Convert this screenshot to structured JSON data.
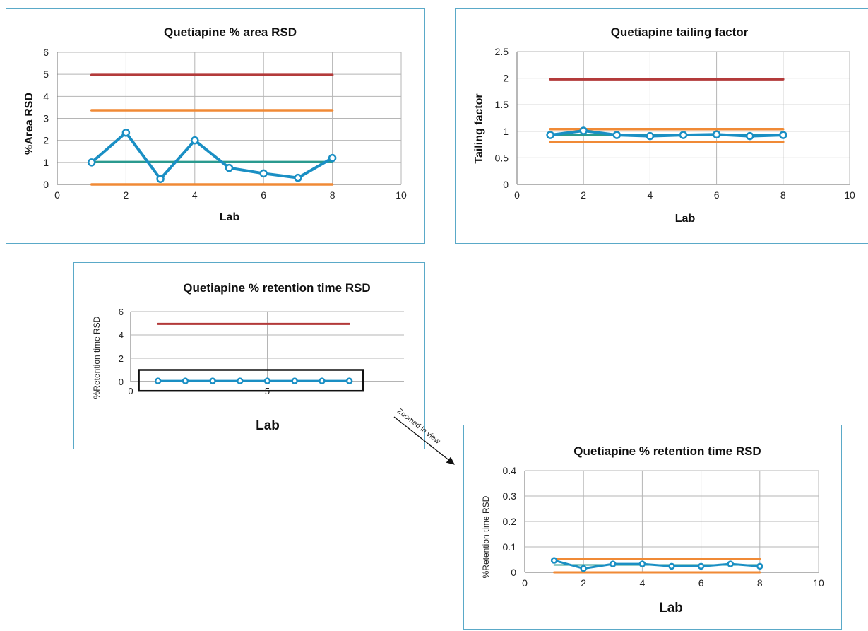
{
  "colors": {
    "panel_border": "#5aa9c8",
    "series": "#1a8fc4",
    "upper_limit": "#b33a3a",
    "orange_limit": "#f08a36",
    "mean_line": "#2a9a8f",
    "grid": "#b5b5b5",
    "axis": "#888888"
  },
  "annotation": {
    "text": "Zoomed in view"
  },
  "chart_data": [
    {
      "id": "area",
      "type": "line",
      "title": "Quetiapine % area RSD",
      "xlabel": "Lab",
      "ylabel": "%Area RSD",
      "xlim": [
        0,
        10
      ],
      "ylim": [
        0,
        6
      ],
      "x_ticks": [
        0,
        2,
        4,
        6,
        8,
        10
      ],
      "y_ticks": [
        0,
        1,
        2,
        3,
        4,
        5,
        6
      ],
      "x_tick_labels": [
        "0",
        "2",
        "4",
        "6",
        "8",
        "10"
      ],
      "y_tick_labels": [
        "0",
        "1",
        "2",
        "3",
        "4",
        "5",
        "6"
      ],
      "grid": true,
      "series": [
        {
          "x": [
            1,
            2,
            3,
            4,
            5,
            6,
            7,
            8
          ],
          "values": [
            1.0,
            2.35,
            0.25,
            2.0,
            0.75,
            0.5,
            0.3,
            1.2
          ]
        }
      ],
      "reference_lines": [
        {
          "kind": "upper",
          "y": 4.97,
          "x_range": [
            1,
            8
          ]
        },
        {
          "kind": "orange",
          "y": 3.37,
          "x_range": [
            1,
            8
          ]
        },
        {
          "kind": "mean",
          "y": 1.03,
          "x_range": [
            1,
            8
          ]
        },
        {
          "kind": "orange",
          "y": 0.0,
          "x_range": [
            1,
            8
          ]
        }
      ]
    },
    {
      "id": "tailing",
      "type": "line",
      "title": "Quetiapine tailing factor",
      "xlabel": "Lab",
      "ylabel": "Tailing factor",
      "xlim": [
        0,
        10
      ],
      "ylim": [
        0,
        2.5
      ],
      "x_ticks": [
        0,
        2,
        4,
        6,
        8,
        10
      ],
      "y_ticks": [
        0,
        0.5,
        1,
        1.5,
        2,
        2.5
      ],
      "x_tick_labels": [
        "0",
        "2",
        "4",
        "6",
        "8",
        "10"
      ],
      "y_tick_labels": [
        "0",
        "0.5",
        "1",
        "1.5",
        "2",
        "2.5"
      ],
      "grid": true,
      "series": [
        {
          "x": [
            1,
            2,
            3,
            4,
            5,
            6,
            7,
            8
          ],
          "values": [
            0.93,
            1.01,
            0.93,
            0.91,
            0.93,
            0.94,
            0.91,
            0.93
          ]
        }
      ],
      "reference_lines": [
        {
          "kind": "upper",
          "y": 1.98,
          "x_range": [
            1,
            8
          ]
        },
        {
          "kind": "orange",
          "y": 1.04,
          "x_range": [
            1,
            8
          ]
        },
        {
          "kind": "mean",
          "y": 0.93,
          "x_range": [
            1,
            8
          ]
        },
        {
          "kind": "orange",
          "y": 0.8,
          "x_range": [
            1,
            8
          ]
        }
      ]
    },
    {
      "id": "rt",
      "type": "line",
      "title": "Quetiapine % retention time RSD",
      "xlabel": "Lab",
      "ylabel": "%Retention time RSD",
      "xlim": [
        0,
        10
      ],
      "ylim": [
        0,
        6
      ],
      "x_ticks": [
        0,
        5
      ],
      "y_ticks": [
        0,
        2,
        4,
        6
      ],
      "x_tick_labels": [
        "0",
        "5"
      ],
      "y_tick_labels": [
        "0",
        "2",
        "4",
        "6"
      ],
      "grid": true,
      "series": [
        {
          "x": [
            1,
            2,
            3,
            4,
            5,
            6,
            7,
            8
          ],
          "values": [
            0.05,
            0.05,
            0.05,
            0.05,
            0.05,
            0.05,
            0.05,
            0.05
          ]
        }
      ],
      "reference_lines": [
        {
          "kind": "upper",
          "y": 4.95,
          "x_range": [
            1,
            8
          ]
        },
        {
          "kind": "mean",
          "y": 0.03,
          "x_range": [
            1,
            8
          ]
        }
      ],
      "zoom_box": {
        "x_range": [
          0.3,
          8.5
        ],
        "y_range": [
          -0.8,
          1.0
        ]
      }
    },
    {
      "id": "rtzoom",
      "type": "line",
      "title": "Quetiapine % retention time RSD",
      "xlabel": "Lab",
      "ylabel": "%Retention time RSD",
      "xlim": [
        0,
        10
      ],
      "ylim": [
        0,
        0.4
      ],
      "x_ticks": [
        0,
        2,
        4,
        6,
        8,
        10
      ],
      "y_ticks": [
        0,
        0.1,
        0.2,
        0.3,
        0.4
      ],
      "x_tick_labels": [
        "0",
        "2",
        "4",
        "6",
        "8",
        "10"
      ],
      "y_tick_labels": [
        "0",
        "0.1",
        "0.2",
        "0.3",
        "0.4"
      ],
      "grid": true,
      "series": [
        {
          "x": [
            1,
            2,
            3,
            4,
            5,
            6,
            7,
            8
          ],
          "values": [
            0.047,
            0.015,
            0.033,
            0.033,
            0.024,
            0.024,
            0.033,
            0.024
          ]
        }
      ],
      "reference_lines": [
        {
          "kind": "orange",
          "y": 0.053,
          "x_range": [
            1,
            8
          ]
        },
        {
          "kind": "mean",
          "y": 0.029,
          "x_range": [
            1,
            8
          ]
        },
        {
          "kind": "orange",
          "y": 0.0,
          "x_range": [
            1,
            8
          ]
        }
      ]
    }
  ]
}
